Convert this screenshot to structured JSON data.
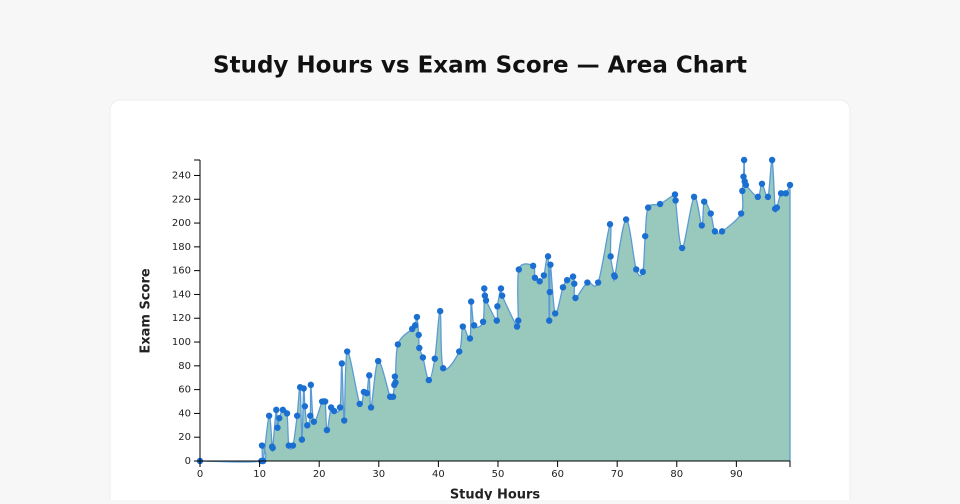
{
  "chart_data": {
    "type": "area",
    "title": "Study Hours vs Exam Score — Area Chart",
    "x_label": "Study Hours",
    "y_label": "Exam Score",
    "xlim": [
      0,
      99
    ],
    "ylim": [
      0,
      253
    ],
    "xticks": [
      0,
      10,
      20,
      30,
      40,
      50,
      60,
      70,
      80,
      90
    ],
    "yticks": [
      0,
      20,
      40,
      60,
      80,
      100,
      120,
      140,
      160,
      180,
      200,
      220,
      240
    ],
    "fill_color": "#99c9bd",
    "line_color": "#5b9bd5",
    "point_color": "#1a6fd1",
    "x": [
      0,
      10.3,
      10.4,
      10.6,
      11.6,
      12.1,
      12.2,
      12.8,
      13.0,
      13.3,
      13.9,
      14.6,
      14.9,
      15.6,
      16.3,
      16.8,
      17.1,
      17.4,
      17.6,
      18.0,
      18.5,
      18.6,
      19.1,
      20.5,
      21.0,
      21.3,
      22.0,
      22.5,
      23.5,
      23.8,
      24.2,
      24.7,
      26.8,
      27.5,
      28.0,
      28.4,
      28.7,
      29.9,
      31.9,
      32.4,
      32.6,
      32.7,
      32.8,
      33.2,
      35.6,
      36.1,
      36.4,
      36.7,
      36.8,
      37.4,
      38.4,
      39.4,
      40.3,
      40.8,
      43.5,
      44.1,
      45.3,
      45.5,
      46.0,
      47.5,
      47.7,
      47.8,
      48.0,
      49.8,
      49.9,
      50.5,
      50.7,
      53.2,
      53.4,
      53.5,
      55.9,
      56.2,
      57.0,
      57.7,
      58.4,
      58.6,
      58.7,
      58.8,
      59.6,
      60.9,
      61.6,
      62.6,
      62.8,
      63.0,
      65.0,
      66.8,
      68.8,
      68.9,
      69.5,
      69.6,
      71.5,
      73.2,
      74.3,
      74.7,
      75.2,
      77.2,
      79.7,
      79.8,
      80.9,
      82.9,
      84.2,
      84.6,
      85.7,
      86.4,
      87.6,
      90.8,
      91.0,
      91.2,
      91.3,
      91.4,
      91.6,
      93.6,
      94.3,
      95.3,
      96.0,
      96.5,
      96.8,
      97.5,
      98.3,
      99.0
    ],
    "values": [
      0,
      0,
      13,
      0,
      38,
      12,
      11,
      43,
      28,
      36,
      43,
      40,
      13,
      13,
      38,
      62,
      18,
      61,
      46,
      30,
      38,
      64,
      33,
      50,
      50,
      26,
      45,
      42,
      45,
      82,
      34,
      92,
      48,
      58,
      57,
      72,
      45,
      84,
      54,
      54,
      64,
      71,
      66,
      98,
      111,
      114,
      121,
      106,
      95,
      87,
      68,
      86,
      126,
      78,
      92,
      113,
      103,
      134,
      114,
      117,
      145,
      139,
      135,
      118,
      130,
      145,
      139,
      113,
      118,
      161,
      164,
      154,
      151,
      156,
      172,
      118,
      142,
      165,
      124,
      146,
      152,
      155,
      149,
      137,
      150,
      150,
      199,
      172,
      156,
      155,
      203,
      161,
      159,
      189,
      213,
      216,
      224,
      219,
      179,
      222,
      198,
      218,
      208,
      193,
      193,
      208,
      227,
      239,
      253,
      235,
      232,
      222,
      233,
      222,
      253,
      212,
      213,
      225,
      225,
      232
    ]
  }
}
